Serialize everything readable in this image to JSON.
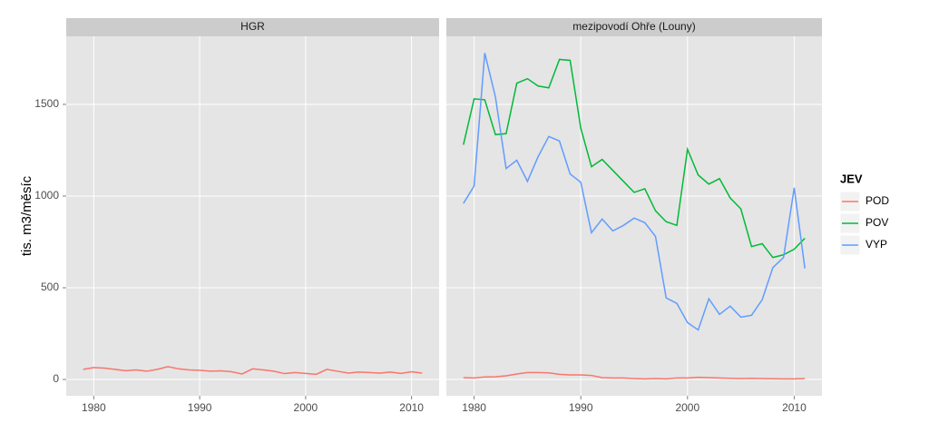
{
  "chart_data": [
    {
      "type": "line",
      "title": "HGR",
      "ylabel": "tis. m3/měsíc",
      "x": [
        1979,
        1980,
        1981,
        1982,
        1983,
        1984,
        1985,
        1986,
        1987,
        1988,
        1989,
        1990,
        1991,
        1992,
        1993,
        1994,
        1995,
        1996,
        1997,
        1998,
        1999,
        2000,
        2001,
        2002,
        2003,
        2004,
        2005,
        2006,
        2007,
        2008,
        2009,
        2010,
        2011
      ],
      "series": [
        {
          "name": "POD",
          "color": "#f8766d",
          "values": [
            55,
            65,
            62,
            55,
            48,
            52,
            45,
            55,
            70,
            58,
            52,
            50,
            45,
            47,
            42,
            30,
            58,
            52,
            45,
            32,
            38,
            33,
            28,
            55,
            45,
            35,
            40,
            38,
            35,
            40,
            33,
            42,
            35
          ]
        }
      ],
      "xlim": [
        1977.4,
        2012.6
      ],
      "xticks": [
        1980,
        1990,
        2000,
        2010
      ],
      "ylim": [
        -89,
        1871
      ],
      "yticks": [
        0,
        500,
        1000,
        1500
      ],
      "grid": true
    },
    {
      "type": "line",
      "title": "mezipovodí Ohře (Louny)",
      "legend_title": "JEV",
      "legend": "right",
      "x": [
        1979,
        1980,
        1981,
        1982,
        1983,
        1984,
        1985,
        1986,
        1987,
        1988,
        1989,
        1990,
        1991,
        1992,
        1993,
        1994,
        1995,
        1996,
        1997,
        1998,
        1999,
        2000,
        2001,
        2002,
        2003,
        2004,
        2005,
        2006,
        2007,
        2008,
        2009,
        2010,
        2011
      ],
      "series": [
        {
          "name": "POD",
          "color": "#f8766d",
          "values": [
            10,
            8,
            14,
            15,
            20,
            30,
            38,
            38,
            36,
            28,
            25,
            25,
            22,
            10,
            8,
            8,
            5,
            3,
            5,
            3,
            8,
            8,
            12,
            10,
            8,
            6,
            5,
            6,
            5,
            4,
            3,
            3,
            5
          ]
        },
        {
          "name": "POV",
          "color": "#00ba38",
          "values": [
            1280,
            1530,
            1525,
            1335,
            1340,
            1615,
            1640,
            1600,
            1590,
            1745,
            1740,
            1370,
            1160,
            1200,
            1140,
            1080,
            1020,
            1040,
            920,
            860,
            840,
            1255,
            1115,
            1065,
            1095,
            990,
            930,
            725,
            740,
            665,
            680,
            710,
            770
          ]
        },
        {
          "name": "VYP",
          "color": "#619cff",
          "values": [
            960,
            1055,
            1780,
            1540,
            1150,
            1195,
            1080,
            1215,
            1325,
            1300,
            1120,
            1075,
            800,
            875,
            810,
            840,
            880,
            855,
            780,
            445,
            415,
            310,
            270,
            440,
            355,
            400,
            340,
            350,
            435,
            610,
            665,
            1045,
            605
          ]
        }
      ],
      "xlim": [
        1977.4,
        2012.6
      ],
      "xticks": [
        1980,
        1990,
        2000,
        2010
      ],
      "ylim": [
        -89,
        1871
      ],
      "grid": true
    }
  ]
}
